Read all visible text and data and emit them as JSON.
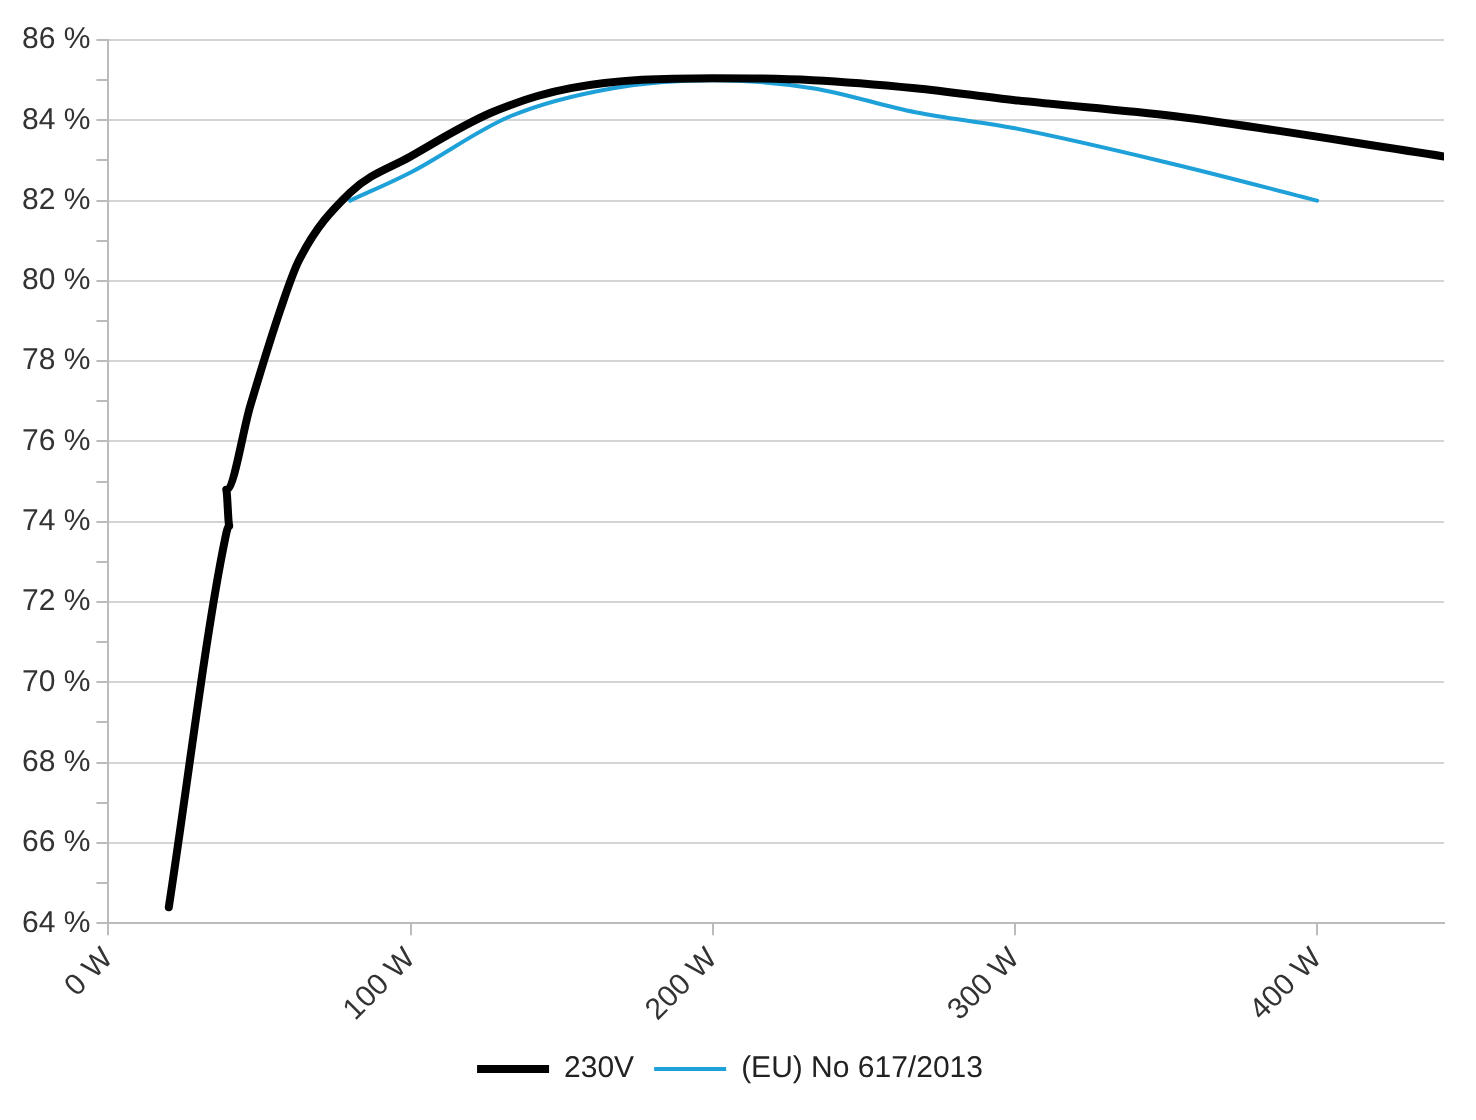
{
  "chart_data": {
    "type": "line",
    "xlim": [
      0,
      442
    ],
    "xticks": [
      {
        "value": 0,
        "label": "0 W"
      },
      {
        "value": 100,
        "label": "100 W"
      },
      {
        "value": 200,
        "label": "200 W"
      },
      {
        "value": 300,
        "label": "300 W"
      },
      {
        "value": 400,
        "label": "400 W"
      }
    ],
    "ylim": [
      64,
      86
    ],
    "yticks": [
      {
        "value": 64,
        "label": "64 %"
      },
      {
        "value": 65,
        "label": null
      },
      {
        "value": 66,
        "label": "66 %"
      },
      {
        "value": 67,
        "label": null
      },
      {
        "value": 68,
        "label": "68 %"
      },
      {
        "value": 69,
        "label": null
      },
      {
        "value": 70,
        "label": "70 %"
      },
      {
        "value": 71,
        "label": null
      },
      {
        "value": 72,
        "label": "72 %"
      },
      {
        "value": 73,
        "label": null
      },
      {
        "value": 74,
        "label": "74 %"
      },
      {
        "value": 75,
        "label": null
      },
      {
        "value": 76,
        "label": "76 %"
      },
      {
        "value": 77,
        "label": null
      },
      {
        "value": 78,
        "label": "78 %"
      },
      {
        "value": 79,
        "label": null
      },
      {
        "value": 80,
        "label": "80 %"
      },
      {
        "value": 81,
        "label": null
      },
      {
        "value": 82,
        "label": "82 %"
      },
      {
        "value": 83,
        "label": null
      },
      {
        "value": 84,
        "label": "84 %"
      },
      {
        "value": 85,
        "label": null
      },
      {
        "value": 86,
        "label": "86 %"
      }
    ],
    "grid": "y",
    "legend": "bottom",
    "marker": "none",
    "line_style": "solid",
    "series": [
      {
        "name": "230V",
        "color": "#000000",
        "x": [
          20,
          38.7,
          40,
          39,
          47,
          57,
          63,
          80,
          100,
          127,
          153,
          200,
          233,
          267,
          300,
          353,
          442
        ],
        "values": [
          64.4,
          73.6,
          73.9,
          74.8,
          76.9,
          79.3,
          80.5,
          82.2,
          83.1,
          84.2,
          84.8,
          85.05,
          85.0,
          84.8,
          84.5,
          84.1,
          83.1
        ]
      },
      {
        "name": "(EU) No 617/2013",
        "color": "#1ea0d8",
        "x": [
          80,
          100,
          133,
          167,
          200,
          233,
          267,
          300,
          353,
          400
        ],
        "values": [
          82.0,
          82.7,
          84.1,
          84.8,
          85.0,
          84.8,
          84.2,
          83.8,
          82.9,
          82.0
        ]
      }
    ]
  }
}
